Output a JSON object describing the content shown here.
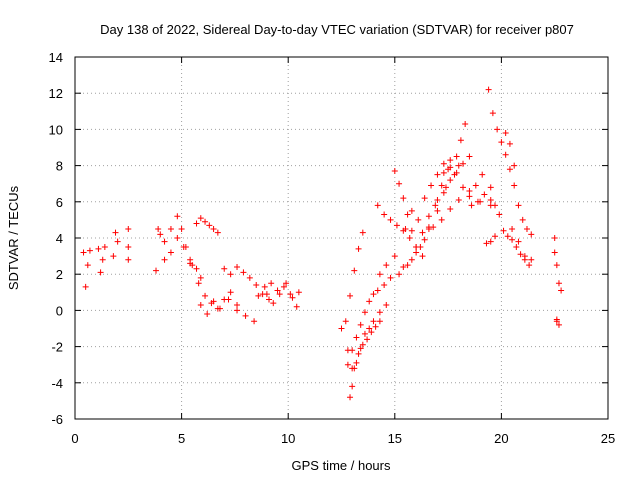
{
  "chart_data": {
    "type": "scatter",
    "title": "Day 138 of 2022, Sidereal Day-to-day VTEC variation (SDTVAR) for receiver p807",
    "xlabel": "GPS time / hours",
    "ylabel": "SDTVAR / TECUs",
    "xlim": [
      0,
      25
    ],
    "ylim": [
      -6,
      14
    ],
    "xticks": [
      0,
      5,
      10,
      15,
      20,
      25
    ],
    "yticks": [
      -6,
      -4,
      -2,
      0,
      2,
      4,
      6,
      8,
      10,
      12,
      14
    ],
    "grid": true,
    "marker": "plus",
    "color": "#ff0000",
    "series": [
      {
        "name": "s1",
        "x": [
          0.4,
          0.5,
          0.6,
          0.7
        ],
        "y": [
          3.2,
          1.3,
          2.5,
          3.3
        ]
      },
      {
        "name": "s2",
        "x": [
          1.1,
          1.2,
          1.3,
          1.4
        ],
        "y": [
          3.4,
          2.1,
          2.8,
          3.5
        ]
      },
      {
        "name": "s3",
        "x": [
          1.8,
          1.9,
          2.0,
          2.5,
          2.5,
          2.5
        ],
        "y": [
          3.0,
          4.3,
          3.8,
          4.5,
          3.5,
          2.8
        ]
      },
      {
        "name": "s4",
        "x": [
          3.8,
          4.0,
          4.2,
          4.5,
          4.8,
          5.0,
          5.2,
          5.4
        ],
        "y": [
          2.2,
          4.2,
          2.8,
          4.5,
          5.2,
          4.5,
          3.5,
          2.6
        ]
      },
      {
        "name": "s5",
        "x": [
          3.9,
          4.2,
          4.5,
          4.8,
          5.1,
          5.4,
          5.7,
          5.9
        ],
        "y": [
          4.5,
          3.8,
          3.2,
          4.0,
          3.5,
          2.8,
          2.3,
          1.8
        ]
      },
      {
        "name": "s6",
        "x": [
          5.5,
          5.8,
          6.1,
          6.4,
          6.7,
          7.0,
          7.3,
          7.6,
          8.0,
          8.4
        ],
        "y": [
          2.5,
          1.5,
          0.8,
          0.4,
          0.1,
          0.6,
          1.0,
          0.3,
          -0.3,
          -0.6
        ]
      },
      {
        "name": "s7",
        "x": [
          5.7,
          5.9,
          6.1,
          6.3,
          6.5,
          6.7
        ],
        "y": [
          4.8,
          5.1,
          4.9,
          4.7,
          4.5,
          4.3
        ]
      },
      {
        "name": "s8",
        "x": [
          5.9,
          6.2,
          6.5,
          6.8,
          7.2,
          7.6
        ],
        "y": [
          0.3,
          -0.2,
          0.5,
          0.1,
          0.6,
          0.0
        ]
      },
      {
        "name": "s9",
        "x": [
          7.0,
          7.3,
          7.6,
          7.9,
          8.2,
          8.5,
          8.8,
          9.1
        ],
        "y": [
          2.3,
          2.0,
          2.4,
          2.1,
          1.8,
          1.4,
          0.9,
          0.6
        ]
      },
      {
        "name": "s10",
        "x": [
          8.6,
          8.9,
          9.2,
          9.5,
          9.8,
          10.1,
          10.4
        ],
        "y": [
          0.8,
          1.3,
          1.5,
          1.1,
          1.3,
          0.9,
          0.2
        ]
      },
      {
        "name": "s11",
        "x": [
          9.0,
          9.3,
          9.6,
          9.9,
          10.2,
          10.5
        ],
        "y": [
          0.9,
          0.4,
          0.9,
          1.5,
          0.7,
          1.0
        ]
      },
      {
        "name": "s12",
        "x": [
          12.5,
          12.8,
          13.0,
          13.2,
          13.4,
          13.6,
          13.8,
          14.0,
          14.3,
          14.6
        ],
        "y": [
          -1.0,
          -2.2,
          -3.2,
          -2.9,
          -2.1,
          -1.3,
          -1.0,
          -0.6,
          -0.1,
          0.3
        ]
      },
      {
        "name": "s13",
        "x": [
          12.9,
          13.0,
          13.1,
          13.3,
          13.5,
          13.7,
          13.9,
          14.1,
          14.3
        ],
        "y": [
          -4.8,
          -4.2,
          -3.2,
          -2.4,
          -1.9,
          -1.6,
          -1.2,
          -0.9,
          -0.6
        ]
      },
      {
        "name": "s14",
        "x": [
          12.8,
          13.0,
          13.2,
          13.4,
          13.6,
          13.8,
          14.0,
          14.2,
          14.5,
          14.8,
          15.2,
          15.6,
          16.0,
          16.4,
          16.8,
          17.2,
          17.6,
          18.0,
          18.5,
          19.0,
          19.5
        ],
        "y": [
          -3.0,
          -2.2,
          -1.5,
          -0.8,
          -0.1,
          0.5,
          0.9,
          1.1,
          1.4,
          1.8,
          2.0,
          2.5,
          3.2,
          3.9,
          4.6,
          5.0,
          5.6,
          6.1,
          6.3,
          6.0,
          5.8
        ]
      },
      {
        "name": "s15",
        "x": [
          12.7,
          12.9,
          13.1,
          13.3,
          13.5
        ],
        "y": [
          -0.6,
          0.8,
          2.2,
          3.4,
          4.3
        ]
      },
      {
        "name": "s16",
        "x": [
          14.3,
          14.6,
          15.0,
          15.4,
          15.8,
          16.2,
          16.6,
          17.0,
          17.3,
          17.6,
          18.0
        ],
        "y": [
          2.0,
          2.5,
          3.0,
          2.4,
          2.8,
          3.5,
          4.6,
          5.5,
          6.5,
          7.2,
          8.0
        ]
      },
      {
        "name": "s17",
        "x": [
          14.2,
          14.5,
          14.8,
          15.1,
          15.4,
          15.7,
          16.0,
          16.3,
          16.6,
          16.9,
          17.2,
          17.5
        ],
        "y": [
          5.8,
          5.3,
          5.0,
          4.7,
          4.4,
          4.0,
          3.5,
          3.0,
          4.5,
          5.8,
          6.9,
          7.8
        ]
      },
      {
        "name": "s18",
        "x": [
          15.0,
          15.2,
          15.4,
          15.6,
          15.8,
          16.0,
          16.3,
          16.6,
          17.0,
          17.4,
          17.8,
          18.2,
          18.5
        ],
        "y": [
          7.7,
          7.0,
          6.2,
          5.3,
          4.4,
          3.5,
          4.3,
          5.2,
          6.1,
          6.8,
          7.5,
          8.1,
          8.5
        ]
      },
      {
        "name": "s19",
        "x": [
          15.5,
          15.8,
          16.1,
          16.4,
          16.7,
          17.0,
          17.3,
          17.6,
          17.9,
          18.1,
          18.3
        ],
        "y": [
          4.5,
          5.5,
          5.0,
          6.2,
          6.9,
          7.5,
          7.6,
          7.9,
          8.5,
          9.4,
          10.3
        ]
      },
      {
        "name": "s20",
        "x": [
          17.3,
          17.6,
          17.9,
          18.2,
          18.5,
          18.8,
          19.1
        ],
        "y": [
          8.1,
          8.3,
          7.6,
          6.8,
          6.6,
          6.9,
          7.5
        ]
      },
      {
        "name": "s21",
        "x": [
          18.6,
          18.9,
          19.2,
          19.5
        ],
        "y": [
          5.8,
          6.0,
          6.4,
          6.1
        ]
      },
      {
        "name": "s22",
        "x": [
          19.4
        ],
        "y": [
          12.2
        ]
      },
      {
        "name": "s23",
        "x": [
          19.3,
          19.5,
          19.7
        ],
        "y": [
          3.7,
          3.8,
          4.1
        ]
      },
      {
        "name": "s24",
        "x": [
          19.5,
          19.7,
          19.9,
          20.1,
          20.3,
          20.5,
          20.7,
          20.9,
          21.1,
          21.3
        ],
        "y": [
          6.8,
          5.8,
          5.3,
          4.4,
          4.1,
          3.9,
          3.5,
          3.1,
          2.8,
          2.5
        ]
      },
      {
        "name": "s25",
        "x": [
          19.6,
          19.8,
          20.0,
          20.2,
          20.4,
          20.6,
          20.8,
          21.0,
          21.2,
          21.4
        ],
        "y": [
          10.9,
          10.0,
          9.3,
          8.6,
          7.8,
          6.9,
          5.8,
          5.0,
          4.5,
          4.2
        ]
      },
      {
        "name": "s26",
        "x": [
          20.2,
          20.4,
          20.6
        ],
        "y": [
          9.8,
          9.2,
          8.0
        ]
      },
      {
        "name": "s27",
        "x": [
          20.5,
          20.8,
          21.1,
          21.4
        ],
        "y": [
          4.5,
          3.8,
          3.0,
          2.8
        ]
      },
      {
        "name": "s28",
        "x": [
          22.5,
          22.6,
          22.7,
          22.8
        ],
        "y": [
          3.2,
          2.5,
          1.5,
          1.1
        ]
      },
      {
        "name": "s29",
        "x": [
          22.5,
          22.6,
          22.7,
          22.6
        ],
        "y": [
          4.0,
          -0.5,
          -0.8,
          -0.6
        ]
      }
    ]
  }
}
